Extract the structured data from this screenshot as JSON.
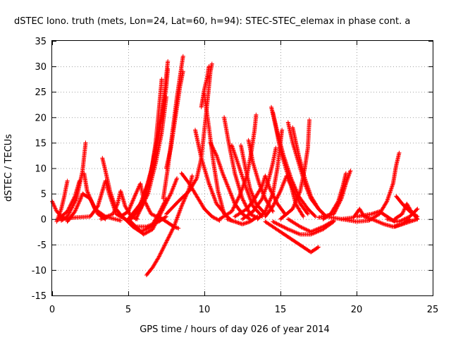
{
  "chart_data": {
    "type": "scatter",
    "title": "dSTEC Iono. truth (mets, Lon=24, Lat=60, h=94): STEC-STEC_elemax in phase cont. a",
    "xlabel": "GPS time / hours of day 026 of year 2014",
    "ylabel": "dSTEC  / TECUs",
    "xlim": [
      0,
      25
    ],
    "ylim": [
      -15,
      35
    ],
    "xticks": [
      "0",
      "5",
      "10",
      "15",
      "20",
      "25"
    ],
    "yticks": [
      "-15",
      "-10",
      "-5",
      "0",
      "5",
      "10",
      "15",
      "20",
      "25",
      "30",
      "35"
    ],
    "grid": true,
    "legend": "none",
    "marker": "+",
    "series_color": "#ff0000",
    "arcs": [
      [
        [
          0.0,
          3.5
        ],
        [
          0.3,
          1.5
        ],
        [
          0.7,
          0.3
        ],
        [
          1.0,
          0.0
        ]
      ],
      [
        [
          0.3,
          -0.5
        ],
        [
          0.6,
          2.0
        ],
        [
          0.8,
          4.5
        ],
        [
          1.0,
          7.5
        ]
      ],
      [
        [
          0.4,
          0.0
        ],
        [
          1.0,
          1.5
        ],
        [
          1.5,
          4.5
        ],
        [
          1.8,
          7.5
        ]
      ],
      [
        [
          0.6,
          -0.3
        ],
        [
          1.0,
          0.5
        ],
        [
          1.6,
          4.0
        ],
        [
          2.0,
          9.5
        ],
        [
          2.2,
          15.0
        ]
      ],
      [
        [
          1.0,
          -0.5
        ],
        [
          1.5,
          1.5
        ],
        [
          1.8,
          3.5
        ],
        [
          2.0,
          5.0
        ],
        [
          2.5,
          4.0
        ],
        [
          3.0,
          1.0
        ],
        [
          3.5,
          0.0
        ]
      ],
      [
        [
          0.5,
          0.0
        ],
        [
          1.5,
          0.3
        ],
        [
          2.5,
          0.5
        ],
        [
          3.0,
          2.5
        ],
        [
          3.3,
          5.5
        ],
        [
          3.5,
          7.5
        ],
        [
          3.8,
          4.5
        ],
        [
          4.2,
          1.0
        ],
        [
          4.8,
          0.0
        ]
      ],
      [
        [
          2.1,
          9.0
        ],
        [
          2.3,
          5.5
        ],
        [
          2.8,
          2.0
        ],
        [
          3.5,
          0.5
        ],
        [
          4.5,
          -0.3
        ]
      ],
      [
        [
          3.3,
          12.0
        ],
        [
          3.5,
          9.5
        ],
        [
          3.8,
          5.5
        ],
        [
          4.2,
          2.0
        ],
        [
          4.6,
          0.5
        ]
      ],
      [
        [
          3.2,
          0.0
        ],
        [
          4.0,
          1.0
        ],
        [
          4.3,
          3.0
        ],
        [
          4.5,
          5.5
        ],
        [
          4.8,
          2.5
        ],
        [
          5.2,
          0.5
        ],
        [
          5.6,
          0.0
        ]
      ],
      [
        [
          4.5,
          0.5
        ],
        [
          5.0,
          1.5
        ],
        [
          5.5,
          5.0
        ],
        [
          5.8,
          7.0
        ],
        [
          6.0,
          4.0
        ],
        [
          6.5,
          1.0
        ],
        [
          7.0,
          0.3
        ]
      ],
      [
        [
          4.6,
          0.5
        ],
        [
          5.0,
          -0.5
        ],
        [
          5.5,
          -1.5
        ],
        [
          6.2,
          -1.5
        ],
        [
          7.0,
          -0.5
        ],
        [
          7.5,
          0.5
        ]
      ],
      [
        [
          4.8,
          0.0
        ],
        [
          5.3,
          -1.5
        ],
        [
          5.8,
          -2.5
        ],
        [
          6.5,
          -1.5
        ],
        [
          7.0,
          1.0
        ],
        [
          7.5,
          4.0
        ]
      ],
      [
        [
          5.0,
          0.0
        ],
        [
          5.5,
          -1.5
        ],
        [
          6.0,
          -3.0
        ],
        [
          6.6,
          -2.0
        ],
        [
          7.2,
          1.5
        ],
        [
          7.8,
          5.0
        ],
        [
          8.2,
          8.0
        ]
      ],
      [
        [
          5.1,
          0.0
        ],
        [
          5.8,
          2.0
        ],
        [
          6.2,
          5.0
        ],
        [
          6.5,
          9.0
        ],
        [
          6.8,
          15.0
        ],
        [
          7.0,
          21.0
        ],
        [
          7.2,
          27.5
        ]
      ],
      [
        [
          5.0,
          0.0
        ],
        [
          5.8,
          3.0
        ],
        [
          6.3,
          7.0
        ],
        [
          6.8,
          13.0
        ],
        [
          7.2,
          20.0
        ],
        [
          7.5,
          26.0
        ],
        [
          7.6,
          29.5
        ]
      ],
      [
        [
          5.2,
          0.0
        ],
        [
          6.0,
          4.0
        ],
        [
          6.5,
          9.5
        ],
        [
          6.9,
          15.5
        ],
        [
          7.3,
          22.5
        ],
        [
          7.6,
          31.0
        ]
      ],
      [
        [
          5.5,
          0.0
        ],
        [
          6.3,
          5.0
        ],
        [
          6.8,
          11.0
        ],
        [
          7.2,
          17.0
        ],
        [
          7.5,
          24.0
        ]
      ],
      [
        [
          6.2,
          -11.0
        ],
        [
          6.6,
          -9.5
        ],
        [
          7.0,
          -7.5
        ],
        [
          7.5,
          -4.5
        ],
        [
          8.0,
          -1.5
        ],
        [
          8.5,
          2.5
        ],
        [
          9.0,
          6.0
        ],
        [
          9.2,
          8.5
        ]
      ],
      [
        [
          7.0,
          0.5
        ],
        [
          7.5,
          -0.5
        ],
        [
          8.0,
          -1.5
        ],
        [
          8.3,
          -1.8
        ]
      ],
      [
        [
          7.3,
          4.0
        ],
        [
          7.6,
          10.0
        ],
        [
          7.9,
          17.0
        ],
        [
          8.2,
          24.0
        ],
        [
          8.6,
          32.0
        ]
      ],
      [
        [
          7.5,
          10.0
        ],
        [
          7.8,
          14.0
        ],
        [
          8.1,
          20.0
        ],
        [
          8.4,
          26.0
        ],
        [
          8.6,
          29.0
        ]
      ],
      [
        [
          8.5,
          9.0
        ],
        [
          9.0,
          7.0
        ],
        [
          9.5,
          4.5
        ],
        [
          10.0,
          2.0
        ],
        [
          10.5,
          0.5
        ],
        [
          11.0,
          -0.3
        ]
      ],
      [
        [
          7.5,
          1.0
        ],
        [
          8.3,
          3.5
        ],
        [
          9.0,
          5.5
        ],
        [
          9.5,
          8.0
        ],
        [
          9.8,
          12.0
        ],
        [
          10.0,
          17.5
        ],
        [
          10.2,
          23.0
        ],
        [
          10.4,
          29.0
        ],
        [
          10.5,
          30.5
        ]
      ],
      [
        [
          9.8,
          22.0
        ],
        [
          10.0,
          25.5
        ],
        [
          10.2,
          28.0
        ],
        [
          10.3,
          30.0
        ]
      ],
      [
        [
          10.0,
          24.5
        ],
        [
          10.3,
          18.0
        ],
        [
          10.6,
          11.0
        ],
        [
          10.9,
          5.5
        ],
        [
          11.3,
          1.0
        ],
        [
          11.8,
          -0.3
        ]
      ],
      [
        [
          9.4,
          17.5
        ],
        [
          9.8,
          12.0
        ],
        [
          10.3,
          7.0
        ],
        [
          10.8,
          3.0
        ],
        [
          11.5,
          0.5
        ]
      ],
      [
        [
          10.4,
          15.0
        ],
        [
          10.8,
          12.5
        ],
        [
          11.2,
          9.0
        ],
        [
          11.6,
          6.0
        ],
        [
          12.0,
          3.0
        ],
        [
          12.5,
          1.0
        ],
        [
          13.0,
          0.0
        ]
      ],
      [
        [
          11.3,
          20.0
        ],
        [
          11.6,
          15.0
        ],
        [
          12.0,
          9.0
        ],
        [
          12.5,
          4.0
        ],
        [
          13.0,
          1.0
        ],
        [
          13.5,
          0.2
        ]
      ],
      [
        [
          11.8,
          14.5
        ],
        [
          12.2,
          11.0
        ],
        [
          12.7,
          6.5
        ],
        [
          13.2,
          2.5
        ],
        [
          13.8,
          0.5
        ]
      ],
      [
        [
          12.4,
          14.5
        ],
        [
          12.7,
          10.0
        ],
        [
          13.0,
          6.0
        ],
        [
          13.4,
          3.0
        ],
        [
          14.0,
          1.0
        ]
      ],
      [
        [
          12.9,
          15.5
        ],
        [
          13.2,
          11.0
        ],
        [
          13.6,
          7.0
        ],
        [
          14.0,
          4.0
        ],
        [
          14.5,
          1.5
        ]
      ],
      [
        [
          11.5,
          0.0
        ],
        [
          12.0,
          -0.5
        ],
        [
          12.5,
          -1.0
        ],
        [
          13.0,
          -0.5
        ],
        [
          13.5,
          0.5
        ]
      ],
      [
        [
          11.0,
          0.0
        ],
        [
          11.8,
          1.5
        ],
        [
          12.3,
          4.5
        ],
        [
          12.8,
          8.5
        ],
        [
          13.1,
          13.5
        ],
        [
          13.3,
          17.5
        ],
        [
          13.4,
          20.5
        ]
      ],
      [
        [
          12.0,
          0.5
        ],
        [
          12.8,
          2.0
        ],
        [
          13.3,
          4.0
        ],
        [
          13.8,
          6.5
        ],
        [
          14.0,
          8.5
        ],
        [
          14.3,
          6.0
        ],
        [
          14.8,
          3.0
        ],
        [
          15.3,
          1.0
        ]
      ],
      [
        [
          12.5,
          0.0
        ],
        [
          13.2,
          1.5
        ],
        [
          13.8,
          4.0
        ],
        [
          14.2,
          7.5
        ],
        [
          14.5,
          11.0
        ],
        [
          14.7,
          14.0
        ]
      ],
      [
        [
          13.5,
          0.0
        ],
        [
          14.0,
          1.5
        ],
        [
          14.5,
          5.0
        ],
        [
          14.8,
          10.0
        ],
        [
          15.0,
          15.0
        ],
        [
          15.1,
          17.5
        ]
      ],
      [
        [
          14.0,
          0.5
        ],
        [
          14.5,
          2.5
        ],
        [
          15.0,
          5.5
        ],
        [
          15.4,
          8.5
        ],
        [
          15.7,
          6.5
        ],
        [
          16.0,
          3.0
        ],
        [
          16.5,
          0.5
        ]
      ],
      [
        [
          14.4,
          22.0
        ],
        [
          14.7,
          18.0
        ],
        [
          15.0,
          13.5
        ],
        [
          15.4,
          9.5
        ],
        [
          15.8,
          6.0
        ],
        [
          16.3,
          3.0
        ],
        [
          16.8,
          1.0
        ]
      ],
      [
        [
          14.5,
          21.0
        ],
        [
          14.8,
          17.0
        ],
        [
          15.2,
          12.5
        ],
        [
          15.7,
          8.0
        ],
        [
          16.2,
          4.5
        ],
        [
          16.8,
          2.0
        ],
        [
          17.3,
          0.5
        ]
      ],
      [
        [
          15.5,
          19.0
        ],
        [
          15.8,
          15.0
        ],
        [
          16.2,
          11.0
        ],
        [
          16.6,
          7.0
        ],
        [
          17.0,
          4.0
        ],
        [
          17.5,
          2.0
        ],
        [
          18.0,
          0.5
        ]
      ],
      [
        [
          15.8,
          18.0
        ],
        [
          16.2,
          12.5
        ],
        [
          16.6,
          8.0
        ],
        [
          17.0,
          4.5
        ],
        [
          17.5,
          2.0
        ],
        [
          18.0,
          0.5
        ]
      ],
      [
        [
          14.0,
          -0.5
        ],
        [
          15.0,
          -2.5
        ],
        [
          15.5,
          -3.5
        ],
        [
          16.0,
          -4.5
        ],
        [
          16.5,
          -5.5
        ],
        [
          17.0,
          -6.5
        ],
        [
          17.5,
          -5.5
        ]
      ],
      [
        [
          14.5,
          -0.5
        ],
        [
          15.5,
          -2.0
        ],
        [
          16.3,
          -3.0
        ],
        [
          17.0,
          -3.0
        ],
        [
          17.8,
          -2.0
        ],
        [
          18.5,
          -0.5
        ]
      ],
      [
        [
          15.5,
          0.0
        ],
        [
          16.3,
          -1.5
        ],
        [
          17.0,
          -2.5
        ],
        [
          17.8,
          -1.5
        ],
        [
          18.5,
          -0.3
        ]
      ],
      [
        [
          15.0,
          0.0
        ],
        [
          15.8,
          2.0
        ],
        [
          16.3,
          5.5
        ],
        [
          16.6,
          10.0
        ],
        [
          16.8,
          14.0
        ],
        [
          16.9,
          19.5
        ]
      ],
      [
        [
          17.5,
          0.3
        ],
        [
          18.5,
          1.0
        ],
        [
          19.0,
          4.0
        ],
        [
          19.3,
          7.0
        ],
        [
          19.6,
          9.5
        ]
      ],
      [
        [
          17.8,
          0.0
        ],
        [
          18.3,
          1.0
        ],
        [
          18.8,
          3.5
        ],
        [
          19.1,
          6.5
        ],
        [
          19.3,
          9.0
        ]
      ],
      [
        [
          18.0,
          0.5
        ],
        [
          19.0,
          0.0
        ],
        [
          19.8,
          0.3
        ],
        [
          20.2,
          2.0
        ],
        [
          20.5,
          0.5
        ],
        [
          21.0,
          0.0
        ]
      ],
      [
        [
          19.0,
          0.0
        ],
        [
          20.0,
          -0.5
        ],
        [
          20.8,
          -0.3
        ],
        [
          21.5,
          1.0
        ],
        [
          22.0,
          3.5
        ],
        [
          22.4,
          7.0
        ],
        [
          22.6,
          10.5
        ],
        [
          22.8,
          13.0
        ]
      ],
      [
        [
          20.0,
          0.5
        ],
        [
          21.0,
          1.0
        ],
        [
          21.5,
          1.5
        ],
        [
          22.0,
          0.5
        ],
        [
          22.5,
          -0.5
        ]
      ],
      [
        [
          21.0,
          0.0
        ],
        [
          21.8,
          -1.0
        ],
        [
          22.4,
          -1.5
        ],
        [
          23.0,
          -1.0
        ],
        [
          23.5,
          0.0
        ]
      ],
      [
        [
          22.6,
          4.5
        ],
        [
          23.0,
          3.0
        ],
        [
          23.5,
          1.5
        ],
        [
          24.0,
          0.5
        ]
      ],
      [
        [
          22.5,
          0.0
        ],
        [
          23.0,
          1.0
        ],
        [
          23.3,
          3.0
        ],
        [
          23.6,
          1.5
        ],
        [
          24.0,
          0.0
        ]
      ],
      [
        [
          22.0,
          0.0
        ],
        [
          22.8,
          -0.5
        ],
        [
          23.5,
          0.5
        ],
        [
          24.0,
          2.0
        ]
      ],
      [
        [
          22.5,
          -1.5
        ],
        [
          23.0,
          -1.0
        ],
        [
          23.5,
          -0.5
        ],
        [
          24.0,
          0.0
        ]
      ]
    ]
  }
}
